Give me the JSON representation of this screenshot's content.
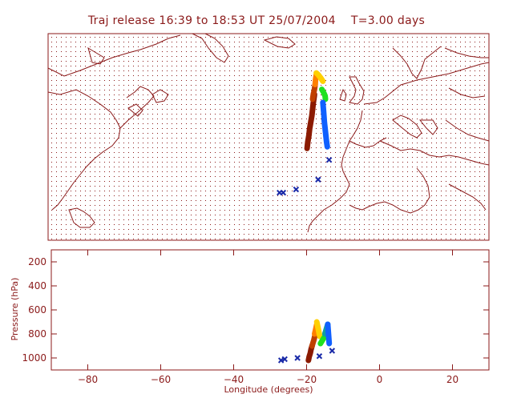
{
  "header": {
    "title_part1": "Traj release 16:39 to 18:53 UT 25/07/2004",
    "title_part2": "T=3.00 days"
  },
  "colors": {
    "frame": "#8b1a1a",
    "coast": "#8b1a1a",
    "grid_dots": "#8b1a1a",
    "marker_x": "#1a2aa8"
  },
  "chart_data": [
    {
      "type": "scatter",
      "name": "map",
      "xlim": [
        -90,
        30
      ],
      "ylim": [
        5,
        68
      ],
      "grid": true,
      "trajectories": [
        {
          "color": "#8b1a00",
          "lon": [
            -19.5,
            -19.3,
            -19.0,
            -18.8,
            -18.5,
            -18.2,
            -18.0,
            -17.8,
            -17.6,
            -17.5
          ],
          "lat": [
            33,
            35,
            37,
            39,
            41,
            43,
            45,
            47,
            48.5,
            49.5
          ]
        },
        {
          "color": "#c04000",
          "lon": [
            -18.0,
            -17.8,
            -17.5,
            -17.3
          ],
          "lat": [
            48,
            49.5,
            51,
            52.5
          ]
        },
        {
          "color": "#ff8000",
          "lon": [
            -17.3,
            -17.2,
            -17.0
          ],
          "lat": [
            52.5,
            54,
            55.5
          ]
        },
        {
          "color": "#ffd000",
          "lon": [
            -17.0,
            -16.5,
            -15.8,
            -15.2
          ],
          "lat": [
            56,
            55.5,
            54.5,
            53.5
          ]
        },
        {
          "color": "#20e020",
          "lon": [
            -15.5,
            -15.0,
            -14.6,
            -14.5
          ],
          "lat": [
            51,
            50,
            49,
            48
          ]
        },
        {
          "color": "#1060ff",
          "lon": [
            -15.2,
            -15.0,
            -14.8,
            -14.6,
            -14.4,
            -14.2,
            -14.0
          ],
          "lat": [
            47,
            44,
            41,
            39,
            37,
            35,
            33.5
          ]
        }
      ],
      "markers": {
        "label": "x",
        "lon": [
          -13.5,
          -16.5,
          -22.5,
          -26.0,
          -27.0
        ],
        "lat": [
          29.5,
          23.5,
          20.5,
          19.5,
          19.5
        ]
      }
    },
    {
      "type": "scatter",
      "name": "pressure",
      "xlabel": "Longitude  (degrees)",
      "ylabel": "Pressure  (hPa)",
      "xlim": [
        -90,
        30
      ],
      "ylim": [
        1100,
        100
      ],
      "xticks": [
        -80,
        -60,
        -40,
        -20,
        0,
        20
      ],
      "yticks": [
        200,
        400,
        600,
        800,
        1000
      ],
      "trajectories": [
        {
          "color": "#8b1a00",
          "lon": [
            -19.5,
            -19.3,
            -19.0,
            -18.8,
            -18.5
          ],
          "p": [
            1020,
            990,
            960,
            930,
            900
          ]
        },
        {
          "color": "#c04000",
          "lon": [
            -18.5,
            -18.0,
            -17.6
          ],
          "p": [
            900,
            850,
            800
          ]
        },
        {
          "color": "#ff8000",
          "lon": [
            -17.8,
            -17.5,
            -17.2
          ],
          "p": [
            800,
            760,
            720
          ]
        },
        {
          "color": "#ffd000",
          "lon": [
            -17.2,
            -16.8,
            -16.4
          ],
          "p": [
            700,
            760,
            820
          ]
        },
        {
          "color": "#20e020",
          "lon": [
            -16.2,
            -15.6,
            -15.0
          ],
          "p": [
            880,
            850,
            820
          ]
        },
        {
          "color": "#10a0a0",
          "lon": [
            -15.0,
            -14.6,
            -14.2
          ],
          "p": [
            800,
            760,
            720
          ]
        },
        {
          "color": "#1060ff",
          "lon": [
            -14.2,
            -14.0,
            -13.8
          ],
          "p": [
            720,
            800,
            880
          ]
        }
      ],
      "markers": {
        "label": "x",
        "lon": [
          -13.0,
          -16.5,
          -22.5,
          -26.0,
          -27.0
        ],
        "p": [
          940,
          985,
          1000,
          1010,
          1020
        ]
      }
    }
  ]
}
